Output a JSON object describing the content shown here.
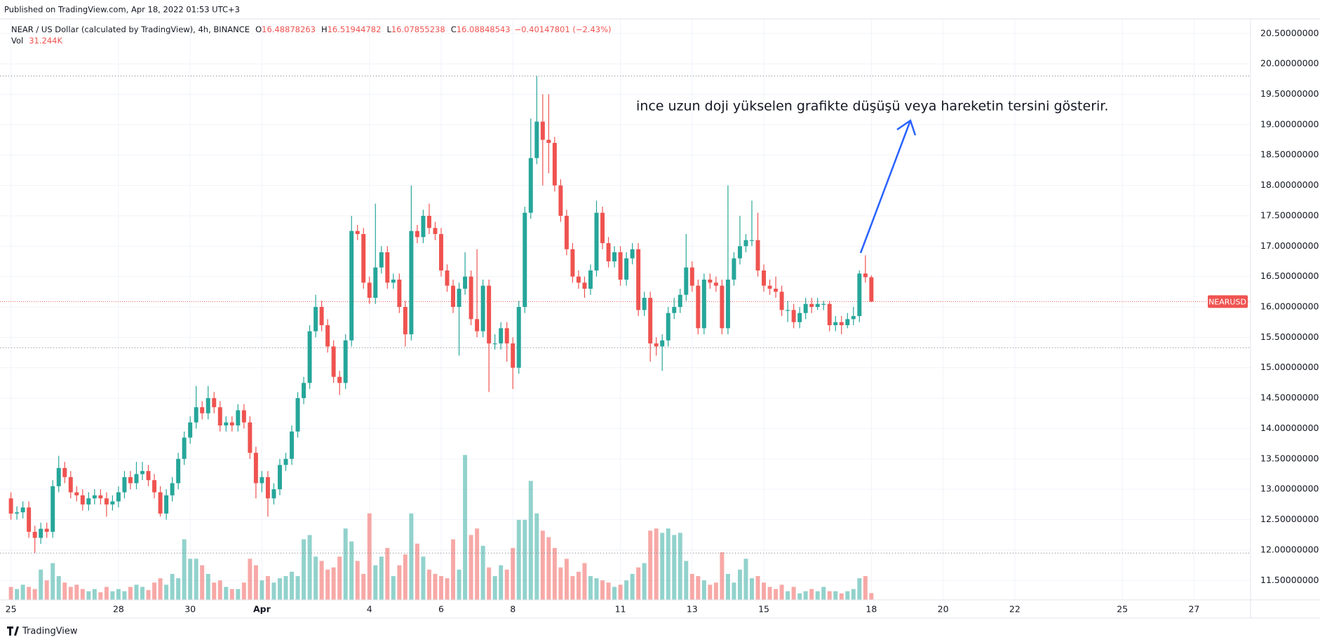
{
  "header": {
    "published": "Published on TradingView.com, Apr 18, 2022 01:53 UTC+3",
    "footer": "TradingView"
  },
  "chart_data": {
    "type": "candlestick",
    "symbol_title": "NEAR / US Dollar (calculated by TradingView), 4h, BINANCE",
    "ohlc_prefixes": [
      "O",
      "H",
      "L",
      "C"
    ],
    "change_label": "−0.40147801 (−2.43%)",
    "volume_title": "Vol",
    "last_volume_label": "31.244K",
    "symbol_tag": "NEARUSD",
    "annotation": "ince uzun doji yükselen grafikte düşüşü veya hareketin tersini gösterir.",
    "up_color": "#26a69a",
    "down_color": "#ef5350",
    "open": [
      12.85,
      12.6,
      12.62,
      12.7,
      12.3,
      12.2,
      12.35,
      12.3,
      13.05,
      13.35,
      13.2,
      12.95,
      12.9,
      12.75,
      12.85,
      12.9,
      12.85,
      12.75,
      12.8,
      12.95,
      13.2,
      13.1,
      13.25,
      13.3,
      13.15,
      12.95,
      12.6,
      12.9,
      13.1,
      13.5,
      13.85,
      14.1,
      14.35,
      14.25,
      14.5,
      14.35,
      14.05,
      14.1,
      14.05,
      14.3,
      14.1,
      13.6,
      13.1,
      13.2,
      12.85,
      13,
      13.4,
      13.5,
      13.95,
      14.5,
      14.75,
      15.6,
      16,
      15.7,
      15.35,
      14.85,
      14.75,
      15.45,
      17.25,
      17.2,
      16.4,
      16.15,
      16.65,
      16.9,
      16.4,
      16.45,
      16,
      15.55,
      17.25,
      17.15,
      17.5,
      17.3,
      17.2,
      16.6,
      16.35,
      16,
      16.3,
      16.5,
      15.8,
      15.6,
      16.35,
      15.4,
      15.4,
      15.65,
      15.4,
      15,
      16,
      17.55,
      18.45,
      19.05,
      18.75,
      18.7,
      18,
      17.5,
      16.95,
      16.5,
      16.4,
      16.3,
      16.6,
      17.55,
      17.05,
      16.75,
      16.9,
      16.45,
      16.8,
      16.95,
      15.95,
      16.15,
      15.4,
      15.35,
      15.45,
      15.9,
      16,
      16.2,
      16.65,
      16.35,
      15.65,
      16.45,
      16.4,
      16.35,
      15.65,
      16.45,
      16.8,
      17,
      17.1,
      17.1,
      16.6,
      16.35,
      16.3,
      16.25,
      15.95,
      15.95,
      15.75,
      15.9,
      16.05,
      16,
      16.05,
      16.05,
      15.7,
      15.75,
      15.7,
      15.8,
      15.85,
      16.55,
      16.48878263
    ],
    "high": [
      12.95,
      12.72,
      12.8,
      12.8,
      12.4,
      12.45,
      12.45,
      13.15,
      13.55,
      13.45,
      13.3,
      13.05,
      13,
      12.95,
      13,
      13,
      12.95,
      12.9,
      13.05,
      13.3,
      13.3,
      13.45,
      13.45,
      13.4,
      13.25,
      13.05,
      13,
      13.2,
      13.6,
      13.95,
      14.2,
      14.7,
      14.45,
      14.7,
      14.6,
      14.45,
      14.2,
      14.2,
      14.4,
      14.4,
      14.2,
      13.7,
      13.3,
      13.3,
      13.1,
      13.5,
      13.6,
      14.05,
      14.6,
      14.85,
      15.7,
      16.2,
      16.1,
      15.8,
      15.45,
      14.95,
      15.55,
      17.5,
      17.35,
      17.3,
      16.5,
      17.7,
      17,
      17,
      16.55,
      16.55,
      16.1,
      18,
      17.35,
      17.6,
      17.7,
      17.4,
      17.3,
      16.7,
      16.45,
      16.4,
      16.9,
      16.6,
      16.95,
      16.45,
      16.45,
      15.55,
      15.75,
      15.75,
      15.5,
      16.1,
      17.65,
      19.1,
      19.8,
      19.5,
      19.5,
      18.8,
      18.1,
      17.6,
      17.05,
      16.6,
      16.5,
      16.7,
      17.75,
      17.65,
      17.15,
      17,
      17,
      16.9,
      17.05,
      17.05,
      16.25,
      16.25,
      15.5,
      15.55,
      16,
      16.15,
      16.3,
      17.2,
      16.75,
      16.45,
      16.55,
      16.55,
      16.5,
      16.45,
      18,
      16.9,
      17.5,
      17.2,
      17.75,
      17.55,
      16.7,
      16.45,
      16.5,
      16.35,
      16.1,
      16.05,
      16,
      16.15,
      16.15,
      16.15,
      16.1,
      16.1,
      15.85,
      15.85,
      15.9,
      16,
      16.6,
      16.85,
      16.51944782
    ],
    "low": [
      12.5,
      12.5,
      12.52,
      12.2,
      11.95,
      12.1,
      12.2,
      12.2,
      12.95,
      13.1,
      12.85,
      12.8,
      12.65,
      12.65,
      12.75,
      12.75,
      12.55,
      12.65,
      12.7,
      12.85,
      13,
      13,
      13.15,
      13.05,
      12.85,
      12.55,
      12.5,
      12.8,
      13,
      13.4,
      13.75,
      14,
      14.15,
      14.15,
      14.25,
      13.95,
      13.95,
      13.95,
      13.95,
      14,
      13.5,
      12.85,
      12.95,
      12.55,
      12.75,
      12.9,
      13.3,
      13.4,
      13.85,
      14.4,
      14.65,
      15.5,
      15.6,
      15.25,
      14.75,
      14.55,
      14.65,
      15.35,
      17.1,
      16.3,
      16.05,
      16.05,
      16.55,
      16.3,
      16.3,
      15.9,
      15.35,
      15.45,
      17.05,
      17.05,
      17.2,
      17.1,
      16.5,
      16.25,
      15.9,
      15.2,
      16.2,
      15.7,
      15.5,
      15.5,
      14.6,
      15.3,
      15.3,
      15.1,
      14.65,
      14.9,
      15.9,
      17.45,
      18.35,
      18,
      18.2,
      17.9,
      17.4,
      16.85,
      16.4,
      16.3,
      16.15,
      16.2,
      16.5,
      16.95,
      16.65,
      16.65,
      16.35,
      16.35,
      16.7,
      15.85,
      15.85,
      15.1,
      15.2,
      14.95,
      15.35,
      15.8,
      15.9,
      16.1,
      16.25,
      15.55,
      15.55,
      16.3,
      16.25,
      15.55,
      15.55,
      16.35,
      16.7,
      16.9,
      17,
      16.5,
      16.25,
      16.2,
      16.15,
      15.85,
      15.75,
      15.65,
      15.65,
      15.8,
      15.9,
      15.95,
      15.95,
      15.6,
      15.6,
      15.55,
      15.65,
      15.7,
      15.75,
      16.4,
      16.07855238
    ],
    "close": [
      12.6,
      12.62,
      12.7,
      12.3,
      12.2,
      12.35,
      12.3,
      13.05,
      13.35,
      13.2,
      12.95,
      12.9,
      12.75,
      12.85,
      12.9,
      12.85,
      12.75,
      12.8,
      12.95,
      13.2,
      13.1,
      13.25,
      13.3,
      13.15,
      12.95,
      12.6,
      12.9,
      13.1,
      13.5,
      13.85,
      14.1,
      14.35,
      14.25,
      14.5,
      14.35,
      14.05,
      14.1,
      14.05,
      14.3,
      14.1,
      13.6,
      13.1,
      13.2,
      12.85,
      13,
      13.4,
      13.5,
      13.95,
      14.5,
      14.75,
      15.6,
      16,
      15.7,
      15.35,
      14.85,
      14.75,
      15.45,
      17.25,
      17.2,
      16.4,
      16.15,
      16.65,
      16.9,
      16.4,
      16.45,
      16,
      15.55,
      17.25,
      17.15,
      17.5,
      17.3,
      17.2,
      16.6,
      16.35,
      16,
      16.3,
      16.5,
      15.8,
      15.6,
      16.35,
      15.4,
      15.4,
      15.65,
      15.4,
      15,
      16,
      17.55,
      18.45,
      19.05,
      18.75,
      18.7,
      18,
      17.5,
      16.95,
      16.5,
      16.4,
      16.3,
      16.6,
      17.55,
      17.05,
      16.75,
      16.9,
      16.45,
      16.8,
      16.95,
      15.95,
      16.15,
      15.4,
      15.35,
      15.45,
      15.9,
      16,
      16.2,
      16.65,
      16.35,
      15.65,
      16.45,
      16.4,
      16.35,
      15.65,
      16.45,
      16.8,
      17,
      17.1,
      17.1,
      16.6,
      16.35,
      16.3,
      16.25,
      15.95,
      15.95,
      15.75,
      15.9,
      16.05,
      16,
      16.05,
      16.05,
      15.7,
      15.75,
      15.7,
      15.8,
      15.85,
      16.55,
      16.49,
      16.08848543
    ],
    "volume": [
      60,
      50,
      70,
      60,
      50,
      140,
      90,
      170,
      110,
      80,
      60,
      70,
      50,
      40,
      50,
      35,
      60,
      40,
      50,
      40,
      60,
      70,
      60,
      45,
      80,
      100,
      70,
      120,
      100,
      280,
      190,
      190,
      160,
      120,
      80,
      90,
      60,
      50,
      50,
      80,
      190,
      160,
      90,
      110,
      80,
      100,
      110,
      130,
      110,
      280,
      300,
      200,
      180,
      140,
      150,
      200,
      330,
      270,
      180,
      120,
      400,
      160,
      200,
      240,
      110,
      160,
      210,
      400,
      260,
      200,
      140,
      120,
      110,
      100,
      280,
      140,
      670,
      300,
      330,
      250,
      150,
      110,
      160,
      140,
      240,
      370,
      370,
      550,
      400,
      320,
      290,
      240,
      150,
      190,
      110,
      130,
      170,
      110,
      100,
      90,
      80,
      60,
      70,
      90,
      120,
      150,
      170,
      320,
      330,
      310,
      330,
      300,
      310,
      180,
      120,
      110,
      90,
      70,
      80,
      220,
      120,
      80,
      140,
      190,
      100,
      110,
      80,
      60,
      50,
      70,
      40,
      60,
      30,
      40,
      50,
      40,
      60,
      40,
      40,
      30,
      40,
      50,
      100,
      110,
      31.244
    ],
    "xlim": [
      -1.83,
      207.46
    ],
    "xticks": [
      {
        "value": 0,
        "label": "25"
      },
      {
        "value": 18,
        "label": "28"
      },
      {
        "value": 30,
        "label": "30"
      },
      {
        "value": 42,
        "label": "Apr"
      },
      {
        "value": 60,
        "label": "4"
      },
      {
        "value": 72,
        "label": "6"
      },
      {
        "value": 84,
        "label": "8"
      },
      {
        "value": 102,
        "label": "11"
      },
      {
        "value": 114,
        "label": "13"
      },
      {
        "value": 126,
        "label": "15"
      },
      {
        "value": 144,
        "label": "18"
      },
      {
        "value": 156,
        "label": "20"
      },
      {
        "value": 168,
        "label": "22"
      },
      {
        "value": 186,
        "label": "25"
      },
      {
        "value": 198,
        "label": "27"
      }
    ],
    "ylim": [
      11.18,
      20.74
    ],
    "yticks": [
      {
        "value": 11.5,
        "label": "11.50000000"
      },
      {
        "value": 12,
        "label": "12.00000000"
      },
      {
        "value": 12.5,
        "label": "12.50000000"
      },
      {
        "value": 13,
        "label": "13.00000000"
      },
      {
        "value": 13.5,
        "label": "13.50000000"
      },
      {
        "value": 14,
        "label": "14.00000000"
      },
      {
        "value": 14.5,
        "label": "14.50000000"
      },
      {
        "value": 15,
        "label": "15.00000000"
      },
      {
        "value": 15.5,
        "label": "15.50000000"
      },
      {
        "value": 16,
        "label": "16.00000000"
      },
      {
        "value": 16.5,
        "label": "16.50000000"
      },
      {
        "value": 17,
        "label": "17.00000000"
      },
      {
        "value": 17.5,
        "label": "17.50000000"
      },
      {
        "value": 18,
        "label": "18.00000000"
      },
      {
        "value": 18.5,
        "label": "18.50000000"
      },
      {
        "value": 19,
        "label": "19.00000000"
      },
      {
        "value": 19.5,
        "label": "19.50000000"
      },
      {
        "value": 20,
        "label": "20.00000000"
      },
      {
        "value": 20.5,
        "label": "20.50000000"
      }
    ],
    "vlim": [
      0,
      700
    ],
    "hlines": [
      19.8,
      15.33,
      11.95
    ],
    "grid": true
  }
}
